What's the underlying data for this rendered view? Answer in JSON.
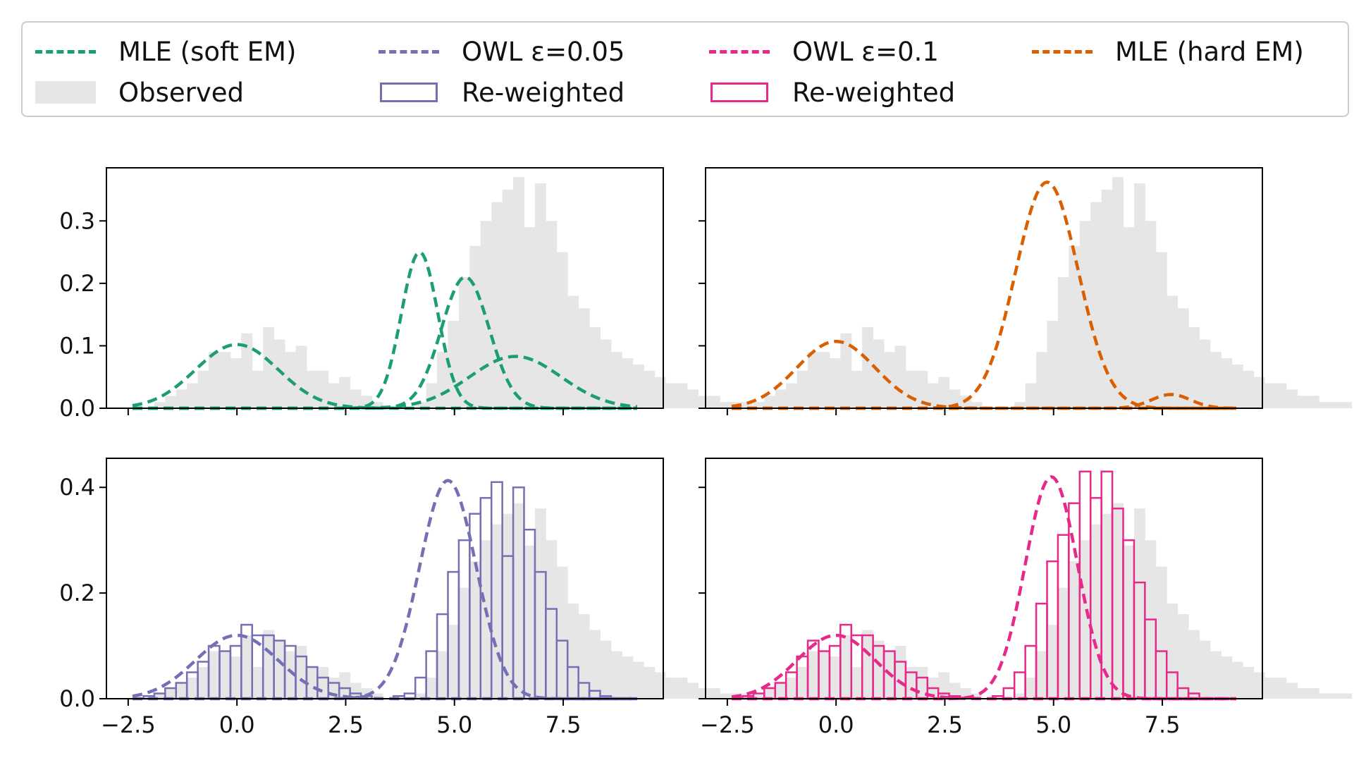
{
  "colors": {
    "soft_em": "#1b9e77",
    "owl_005": "#7570b3",
    "owl_01": "#e7298a",
    "hard_em": "#d95f02",
    "observed": "#e6e6e6"
  },
  "legend": {
    "items": [
      {
        "label": "MLE (soft EM)",
        "kind": "dash",
        "color": "#1b9e77"
      },
      {
        "label": "OWL ε=0.05",
        "kind": "dash",
        "color": "#7570b3"
      },
      {
        "label": "OWL ε=0.1",
        "kind": "dash",
        "color": "#e7298a"
      },
      {
        "label": "MLE (hard EM)",
        "kind": "dash",
        "color": "#d95f02"
      },
      {
        "label": "Observed",
        "kind": "fill",
        "color": "#e6e6e6"
      },
      {
        "label": "Re-weighted",
        "kind": "outline",
        "color": "#7570b3"
      },
      {
        "label": "Re-weighted",
        "kind": "outline",
        "color": "#e7298a"
      }
    ]
  },
  "chart_data": [
    {
      "type": "area",
      "panel": "top-left",
      "xlim": [
        -3.0,
        9.8
      ],
      "ylim": [
        0,
        0.385
      ],
      "yticks": [
        0.0,
        0.1,
        0.2,
        0.3
      ],
      "ytick_labels": [
        "0.0",
        "0.1",
        "0.2",
        "0.3"
      ],
      "xticks": [
        -2.5,
        0.0,
        2.5,
        5.0,
        7.5
      ],
      "xtick_labels": [],
      "observed_hist": {
        "bin_start": -2.4,
        "bin_width": 0.25,
        "values": [
          0.0,
          0.0,
          0.01,
          0.02,
          0.03,
          0.04,
          0.06,
          0.09,
          0.09,
          0.08,
          0.12,
          0.06,
          0.13,
          0.11,
          0.09,
          0.1,
          0.06,
          0.06,
          0.04,
          0.05,
          0.03,
          0.02,
          0.01,
          0.0,
          0.0,
          0.0,
          0.01,
          0.04,
          0.09,
          0.14,
          0.21,
          0.26,
          0.3,
          0.33,
          0.35,
          0.37,
          0.29,
          0.36,
          0.3,
          0.25,
          0.18,
          0.16,
          0.13,
          0.11,
          0.09,
          0.08,
          0.07,
          0.06,
          0.05,
          0.04,
          0.04,
          0.03,
          0.02,
          0.02,
          0.01,
          0.01,
          0.01,
          0.0
        ]
      },
      "series": [
        {
          "name": "MLE (soft EM)",
          "style": "dashed",
          "color": "#1b9e77",
          "curve": "gaussian",
          "mu": 0.0,
          "sigma": 0.95,
          "peak": 0.102
        },
        {
          "name": "MLE (soft EM)",
          "style": "dashed",
          "color": "#1b9e77",
          "curve": "gaussian",
          "mu": 4.2,
          "sigma": 0.42,
          "peak": 0.25
        },
        {
          "name": "MLE (soft EM)",
          "style": "dashed",
          "color": "#1b9e77",
          "curve": "gaussian",
          "mu": 5.25,
          "sigma": 0.55,
          "peak": 0.21
        },
        {
          "name": "MLE (soft EM)",
          "style": "dashed",
          "color": "#1b9e77",
          "curve": "gaussian",
          "mu": 6.4,
          "sigma": 1.05,
          "peak": 0.083
        }
      ]
    },
    {
      "type": "area",
      "panel": "top-right",
      "xlim": [
        -3.0,
        9.8
      ],
      "ylim": [
        0,
        0.385
      ],
      "yticks": [
        0.0,
        0.1,
        0.2,
        0.3
      ],
      "ytick_labels": [],
      "xticks": [
        -2.5,
        0.0,
        2.5,
        5.0,
        7.5
      ],
      "xtick_labels": [],
      "observed_hist": {
        "bin_start": -2.4,
        "bin_width": 0.25,
        "values": [
          0.0,
          0.0,
          0.01,
          0.02,
          0.03,
          0.04,
          0.06,
          0.09,
          0.09,
          0.08,
          0.12,
          0.06,
          0.13,
          0.11,
          0.09,
          0.1,
          0.06,
          0.06,
          0.04,
          0.05,
          0.03,
          0.02,
          0.01,
          0.0,
          0.0,
          0.0,
          0.01,
          0.04,
          0.09,
          0.14,
          0.21,
          0.26,
          0.3,
          0.33,
          0.35,
          0.37,
          0.29,
          0.36,
          0.3,
          0.25,
          0.18,
          0.16,
          0.13,
          0.11,
          0.09,
          0.08,
          0.07,
          0.06,
          0.05,
          0.04,
          0.04,
          0.03,
          0.02,
          0.02,
          0.01,
          0.01,
          0.01,
          0.0
        ]
      },
      "series": [
        {
          "name": "MLE (hard EM)",
          "style": "dashed",
          "color": "#d95f02",
          "curve": "gaussian",
          "mu": 0.0,
          "sigma": 0.9,
          "peak": 0.107
        },
        {
          "name": "MLE (hard EM)",
          "style": "dashed",
          "color": "#d95f02",
          "curve": "gaussian",
          "mu": 4.85,
          "sigma": 0.72,
          "peak": 0.362
        },
        {
          "name": "MLE (hard EM)",
          "style": "dashed",
          "color": "#d95f02",
          "curve": "gaussian",
          "mu": 7.7,
          "sigma": 0.45,
          "peak": 0.022
        }
      ]
    },
    {
      "type": "area",
      "panel": "bottom-left",
      "xlim": [
        -3.0,
        9.8
      ],
      "ylim": [
        0,
        0.455
      ],
      "yticks": [
        0.0,
        0.2,
        0.4
      ],
      "ytick_labels": [
        "0.0",
        "0.2",
        "0.4"
      ],
      "xticks": [
        -2.5,
        0.0,
        2.5,
        5.0,
        7.5
      ],
      "xtick_labels": [
        "−2.5",
        "0.0",
        "2.5",
        "5.0",
        "7.5"
      ],
      "observed_hist": {
        "bin_start": -2.4,
        "bin_width": 0.25,
        "values": [
          0.0,
          0.0,
          0.01,
          0.02,
          0.03,
          0.04,
          0.06,
          0.09,
          0.09,
          0.08,
          0.12,
          0.06,
          0.13,
          0.11,
          0.09,
          0.1,
          0.06,
          0.06,
          0.04,
          0.05,
          0.03,
          0.02,
          0.01,
          0.0,
          0.0,
          0.0,
          0.01,
          0.04,
          0.09,
          0.14,
          0.21,
          0.26,
          0.3,
          0.33,
          0.35,
          0.37,
          0.29,
          0.36,
          0.3,
          0.25,
          0.18,
          0.16,
          0.13,
          0.11,
          0.09,
          0.08,
          0.07,
          0.06,
          0.05,
          0.04,
          0.04,
          0.03,
          0.02,
          0.02,
          0.01,
          0.01,
          0.01,
          0.0
        ]
      },
      "reweighted_hist": {
        "name": "Re-weighted",
        "color": "#7570b3",
        "bin_start": -2.4,
        "bin_width": 0.25,
        "values": [
          0.0,
          0.005,
          0.01,
          0.02,
          0.03,
          0.05,
          0.07,
          0.1,
          0.09,
          0.1,
          0.14,
          0.12,
          0.12,
          0.11,
          0.1,
          0.08,
          0.06,
          0.04,
          0.03,
          0.02,
          0.01,
          0.005,
          0.0,
          0.0,
          0.005,
          0.01,
          0.04,
          0.09,
          0.16,
          0.24,
          0.3,
          0.35,
          0.38,
          0.41,
          0.27,
          0.4,
          0.32,
          0.24,
          0.17,
          0.11,
          0.06,
          0.03,
          0.015,
          0.005,
          0.0
        ]
      },
      "series": [
        {
          "name": "OWL ε=0.05",
          "style": "dashed",
          "color": "#7570b3",
          "curve": "gaussian",
          "mu": 0.0,
          "sigma": 0.95,
          "peak": 0.12
        },
        {
          "name": "OWL ε=0.05",
          "style": "dashed",
          "color": "#7570b3",
          "curve": "gaussian",
          "mu": 4.85,
          "sigma": 0.65,
          "peak": 0.413
        }
      ]
    },
    {
      "type": "area",
      "panel": "bottom-right",
      "xlim": [
        -3.0,
        9.8
      ],
      "ylim": [
        0,
        0.455
      ],
      "yticks": [
        0.0,
        0.2,
        0.4
      ],
      "ytick_labels": [],
      "xticks": [
        -2.5,
        0.0,
        2.5,
        5.0,
        7.5
      ],
      "xtick_labels": [
        "−2.5",
        "0.0",
        "2.5",
        "5.0",
        "7.5"
      ],
      "observed_hist": {
        "bin_start": -2.4,
        "bin_width": 0.25,
        "values": [
          0.0,
          0.0,
          0.01,
          0.02,
          0.03,
          0.04,
          0.06,
          0.09,
          0.09,
          0.08,
          0.12,
          0.06,
          0.13,
          0.11,
          0.09,
          0.1,
          0.06,
          0.06,
          0.04,
          0.05,
          0.03,
          0.02,
          0.01,
          0.0,
          0.0,
          0.0,
          0.01,
          0.04,
          0.09,
          0.14,
          0.21,
          0.26,
          0.3,
          0.33,
          0.35,
          0.37,
          0.29,
          0.36,
          0.3,
          0.25,
          0.18,
          0.16,
          0.13,
          0.11,
          0.09,
          0.08,
          0.07,
          0.06,
          0.05,
          0.04,
          0.04,
          0.03,
          0.02,
          0.02,
          0.01,
          0.01,
          0.01,
          0.0
        ]
      },
      "reweighted_hist": {
        "name": "Re-weighted",
        "color": "#e7298a",
        "bin_start": -2.4,
        "bin_width": 0.25,
        "values": [
          0.0,
          0.005,
          0.01,
          0.02,
          0.03,
          0.05,
          0.08,
          0.11,
          0.09,
          0.1,
          0.14,
          0.12,
          0.12,
          0.1,
          0.09,
          0.07,
          0.05,
          0.04,
          0.02,
          0.01,
          0.005,
          0.0,
          0.0,
          0.0,
          0.005,
          0.02,
          0.05,
          0.1,
          0.18,
          0.26,
          0.31,
          0.37,
          0.43,
          0.38,
          0.43,
          0.36,
          0.3,
          0.22,
          0.15,
          0.09,
          0.05,
          0.02,
          0.01,
          0.0
        ]
      },
      "series": [
        {
          "name": "OWL ε=0.1",
          "style": "dashed",
          "color": "#e7298a",
          "curve": "gaussian",
          "mu": 0.0,
          "sigma": 0.9,
          "peak": 0.12
        },
        {
          "name": "OWL ε=0.1",
          "style": "dashed",
          "color": "#e7298a",
          "curve": "gaussian",
          "mu": 4.95,
          "sigma": 0.6,
          "peak": 0.42
        }
      ]
    }
  ]
}
